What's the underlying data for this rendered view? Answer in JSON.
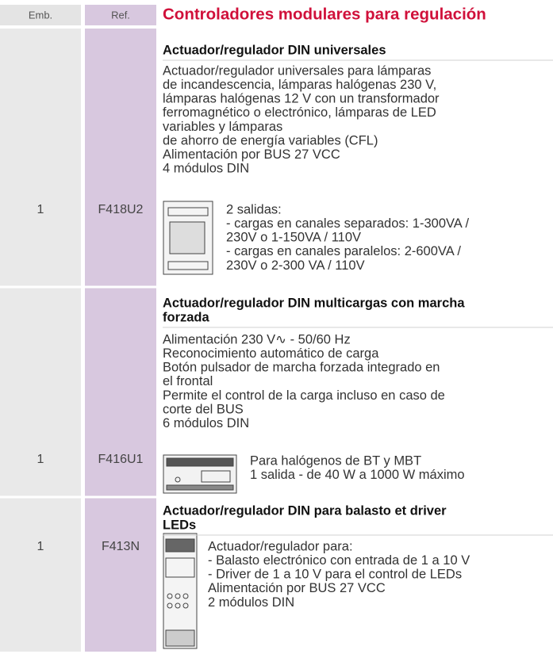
{
  "header": {
    "emb_label": "Emb.",
    "ref_label": "Ref.",
    "title": "Controladores modulares para regulación"
  },
  "products": [
    {
      "emb": "1",
      "ref": "F418U2",
      "heading": [
        "Actuador/regulador DIN universales"
      ],
      "description": [
        "Actuador/regulador universales para lámparas",
        "de incandescencia, lámparas halógenas 230 V,",
        "lámparas halógenas 12 V con un transformador",
        "ferromagnético o electrónico, lámparas de LED",
        "variables y lámparas",
        "de ahorro de energía variables (CFL)",
        "Alimentación por BUS 27 VCC",
        "4 módulos DIN"
      ],
      "icon_text": [
        "2 salidas:",
        "- cargas en canales separados: 1-300VA /",
        "230V o  1-150VA / 110V",
        "- cargas en canales paralelos: 2-600VA /",
        "230V o 2-300 VA / 110V"
      ]
    },
    {
      "emb": "1",
      "ref": "F416U1",
      "heading": [
        "Actuador/regulador DIN multicargas con marcha",
        "forzada"
      ],
      "description": [
        "Alimentación 230 V∿ - 50/60 Hz",
        "Reconocimiento automático de carga",
        "Botón pulsador de marcha forzada integrado en",
        "el frontal",
        "Permite el control de la carga incluso en caso de",
        "corte del BUS",
        "6 módulos DIN"
      ],
      "icon_text": [
        "Para halógenos de BT y MBT",
        "1 salida - de 40 W a 1000 W máximo"
      ]
    },
    {
      "emb": "1",
      "ref": "F413N",
      "heading": [
        "Actuador/regulador DIN para balasto et driver",
        "LEDs"
      ],
      "description": [],
      "icon_text": [
        "Actuador/regulador para:",
        "- Balasto electrónico con entrada de 1 a 10 V",
        "- Driver de 1 a 10 V para el control de LEDs",
        "Alimentación por BUS 27 VCC",
        "2 módulos DIN"
      ]
    }
  ]
}
